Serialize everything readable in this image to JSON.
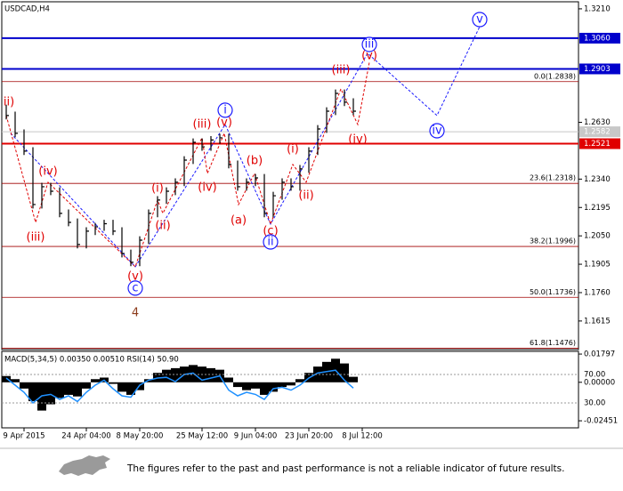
{
  "chart_data": {
    "type": "ohlc",
    "symbol": "USDCAD,H4",
    "color": "#000000",
    "x": [
      0,
      1,
      2,
      3,
      4,
      5,
      6,
      7,
      8,
      9,
      10,
      11,
      12,
      13,
      14,
      15,
      16,
      17,
      18,
      19,
      20,
      21,
      22,
      23,
      24,
      25,
      26,
      27,
      28,
      29,
      30,
      31,
      32,
      33,
      34,
      35,
      36,
      37,
      38,
      39
    ],
    "high": [
      1.272,
      1.2685,
      1.2594,
      1.2503,
      1.2321,
      1.2321,
      1.2298,
      1.2185,
      1.2139,
      1.2094,
      1.2116,
      1.2132,
      1.2132,
      1.2094,
      1.198,
      1.2048,
      1.2185,
      1.2253,
      1.2298,
      1.2344,
      1.2457,
      1.2548,
      1.2548,
      1.256,
      1.2571,
      1.2571,
      1.2435,
      1.2344,
      1.2366,
      1.2366,
      1.2275,
      1.2344,
      1.2344,
      1.2412,
      1.2503,
      1.2616,
      1.2707,
      1.2798,
      1.2798,
      1.2753
    ],
    "low": [
      1.2645,
      1.2554,
      1.2463,
      1.219,
      1.219,
      1.2258,
      1.2145,
      1.2099,
      1.1986,
      1.1986,
      1.2054,
      1.2076,
      1.2054,
      1.194,
      1.1895,
      1.1895,
      1.2008,
      1.2145,
      1.2213,
      1.2258,
      1.2304,
      1.2417,
      1.2485,
      1.2485,
      1.252,
      1.2395,
      1.2281,
      1.2281,
      1.2304,
      1.2145,
      1.2145,
      1.2235,
      1.2281,
      1.2281,
      1.2372,
      1.2463,
      1.2576,
      1.2667,
      1.2713,
      1.2667
    ],
    "close": [
      1.2665,
      1.2574,
      1.2483,
      1.221,
      1.2301,
      1.2278,
      1.2165,
      1.2119,
      1.2006,
      1.2074,
      1.2096,
      1.2112,
      1.2074,
      1.196,
      1.1915,
      1.2028,
      1.2165,
      1.2233,
      1.2278,
      1.2324,
      1.2437,
      1.2528,
      1.2505,
      1.254,
      1.2551,
      1.2415,
      1.2301,
      1.2324,
      1.2346,
      1.2165,
      1.2255,
      1.2324,
      1.2301,
      1.2392,
      1.2483,
      1.2596,
      1.2687,
      1.2778,
      1.2733,
      1.2687
    ],
    "xlim": [
      -0.5,
      64.3
    ],
    "xticks": [
      {
        "value": 2,
        "label": "9 Apr 2015"
      },
      {
        "value": 9,
        "label": "24 Apr 04:00"
      },
      {
        "value": 15,
        "label": "8 May 20:00"
      },
      {
        "value": 22,
        "label": "25 May 12:00"
      },
      {
        "value": 28,
        "label": "9 Jun 04:00"
      },
      {
        "value": 34,
        "label": "23 Jun 20:00"
      },
      {
        "value": 40,
        "label": "8 Jul 12:00"
      }
    ],
    "ylim": [
      1.1469,
      1.3246
    ],
    "yticks": [
      {
        "value": 1.321,
        "label": "1.3210"
      },
      {
        "value": 1.263,
        "label": "1.2630"
      },
      {
        "value": 1.234,
        "label": "1.2340"
      },
      {
        "value": 1.2195,
        "label": "1.2195"
      },
      {
        "value": 1.205,
        "label": "1.2050"
      },
      {
        "value": 1.1905,
        "label": "1.1905"
      },
      {
        "value": 1.176,
        "label": "1.1760"
      },
      {
        "value": 1.1615,
        "label": "1.1615"
      }
    ],
    "levels": [
      {
        "value": 1.306,
        "label": "1.3060",
        "color": "#0000cc"
      },
      {
        "value": 1.2903,
        "label": "1.2903",
        "color": "#0000cc"
      },
      {
        "value": 1.2582,
        "label": "1.2582",
        "color": "#c8c8c8"
      },
      {
        "value": 1.2521,
        "label": "1.2521",
        "color": "#e00000"
      }
    ],
    "fib_levels": [
      {
        "value": 1.2838,
        "label": "0.0(1.2838)"
      },
      {
        "value": 1.2318,
        "label": "23.6(1.2318)"
      },
      {
        "value": 1.1996,
        "label": "38.2(1.1996)"
      },
      {
        "value": 1.1736,
        "label": "50.0(1.1736)"
      },
      {
        "value": 1.1476,
        "label": "61.8(1.1476)"
      }
    ],
    "fib_color": "#a00000",
    "annotations": [
      {
        "text": "ii)",
        "x": 0.3,
        "y": 1.2733,
        "color": "#e00000"
      },
      {
        "text": "(iv)",
        "x": 4.7,
        "y": 1.2378,
        "color": "#e00000"
      },
      {
        "text": "(iii)",
        "x": 3.3,
        "y": 1.2042,
        "color": "#e00000"
      },
      {
        "text": "(v)",
        "x": 14.5,
        "y": 1.1842,
        "color": "#e00000"
      },
      {
        "text": "(i)",
        "x": 17,
        "y": 1.2292,
        "color": "#e00000"
      },
      {
        "text": "(ii)",
        "x": 17.6,
        "y": 1.2101,
        "color": "#e00000"
      },
      {
        "text": "(iii)",
        "x": 22,
        "y": 1.2619,
        "color": "#e00000"
      },
      {
        "text": "(v)",
        "x": 24.5,
        "y": 1.2628,
        "color": "#e00000"
      },
      {
        "text": "(iv)",
        "x": 22.6,
        "y": 1.2296,
        "color": "#e00000"
      },
      {
        "text": "(b)",
        "x": 27.9,
        "y": 1.2433,
        "color": "#e00000"
      },
      {
        "text": "(a)",
        "x": 26.1,
        "y": 1.2128,
        "color": "#e00000"
      },
      {
        "text": "(c)",
        "x": 29.7,
        "y": 1.2074,
        "color": "#e00000"
      },
      {
        "text": "(i)",
        "x": 32.2,
        "y": 1.2492,
        "color": "#e00000"
      },
      {
        "text": "(ii)",
        "x": 33.7,
        "y": 1.2255,
        "color": "#e00000"
      },
      {
        "text": "(iii)",
        "x": 37.6,
        "y": 1.2896,
        "color": "#e00000"
      },
      {
        "text": "(v)",
        "x": 40.8,
        "y": 1.2969,
        "color": "#e00000"
      },
      {
        "text": "(iv)",
        "x": 39.5,
        "y": 1.2542,
        "color": "#e00000"
      },
      {
        "text": "4",
        "x": 14.5,
        "y": 1.1655,
        "color": "#8b3a1a"
      },
      {
        "text": "c",
        "x": 14.5,
        "y": 1.1783,
        "color": "#1a1aff",
        "circle": true
      },
      {
        "text": "i",
        "x": 24.6,
        "y": 1.2692,
        "color": "#1a1aff",
        "circle": true
      },
      {
        "text": "ii",
        "x": 29.7,
        "y": 1.2019,
        "color": "#1a1aff",
        "circle": true
      },
      {
        "text": "iii",
        "x": 40.8,
        "y": 1.3028,
        "color": "#1a1aff",
        "circle": true
      },
      {
        "text": "iv",
        "x": 48.4,
        "y": 1.2587,
        "color": "#1a1aff",
        "circle": true
      },
      {
        "text": "v",
        "x": 53.2,
        "y": 1.3155,
        "color": "#1a1aff",
        "circle": true
      }
    ],
    "wave_paths": [
      {
        "color": "#1a1aff",
        "x": [
          0.5,
          14.5,
          24.6,
          29.7,
          40.6,
          48.4,
          53.2
        ],
        "y": [
          1.2574,
          1.1892,
          1.2619,
          1.211,
          1.2983,
          1.2665,
          1.3119
        ]
      },
      {
        "color": "#e00000",
        "x": [
          0,
          3.3,
          4.7,
          14.5,
          17,
          17.6,
          22,
          22.6,
          24.5,
          26.1,
          27.9,
          29.7,
          32.2,
          33.7,
          37.6,
          39.5,
          40.8
        ],
        "y": [
          1.2665,
          1.2119,
          1.2324,
          1.1892,
          1.2233,
          1.2165,
          1.2551,
          1.2369,
          1.2574,
          1.221,
          1.2369,
          1.211,
          1.2415,
          1.2324,
          1.2801,
          1.2619,
          1.2937
        ]
      }
    ],
    "indicator": {
      "title": "MACD(5,34,5) 0.00350 0.00510 RSI(14) 50.90",
      "macd": [
        0.004,
        0.002,
        -0.004,
        -0.012,
        -0.018,
        -0.014,
        -0.01,
        -0.008,
        -0.009,
        -0.004,
        0.002,
        0.003,
        -0.001,
        -0.006,
        -0.008,
        -0.005,
        0.002,
        0.006,
        0.008,
        0.009,
        0.01,
        0.011,
        0.01,
        0.009,
        0.008,
        0.003,
        -0.003,
        -0.005,
        -0.004,
        -0.008,
        -0.006,
        -0.003,
        -0.002,
        0.002,
        0.006,
        0.01,
        0.013,
        0.015,
        0.012,
        0.0035
      ],
      "macd_color": "#000000",
      "macd_ylim": [
        -0.029,
        0.0197
      ],
      "macd_yticks": [
        0.01797,
        {
          "value": 0,
          "label": "0.00000"
        },
        -0.02451
      ],
      "rsi": [
        65,
        55,
        45,
        30,
        40,
        42,
        35,
        40,
        32,
        45,
        55,
        62,
        50,
        40,
        38,
        55,
        62,
        65,
        66,
        60,
        70,
        72,
        62,
        65,
        68,
        48,
        40,
        45,
        42,
        35,
        50,
        52,
        48,
        55,
        65,
        72,
        74,
        76,
        62,
        50.9
      ],
      "rsi_color": "#1e90ff",
      "rsi_ylim": [
        -5,
        102.5
      ],
      "rsi_yticks": [
        {
          "value": 70,
          "label": "70.00"
        },
        {
          "value": 30,
          "label": "30.00"
        }
      ]
    }
  },
  "footer": {
    "disclaimer": "The figures refer to the past and past performance is not a reliable indicator of future results."
  }
}
